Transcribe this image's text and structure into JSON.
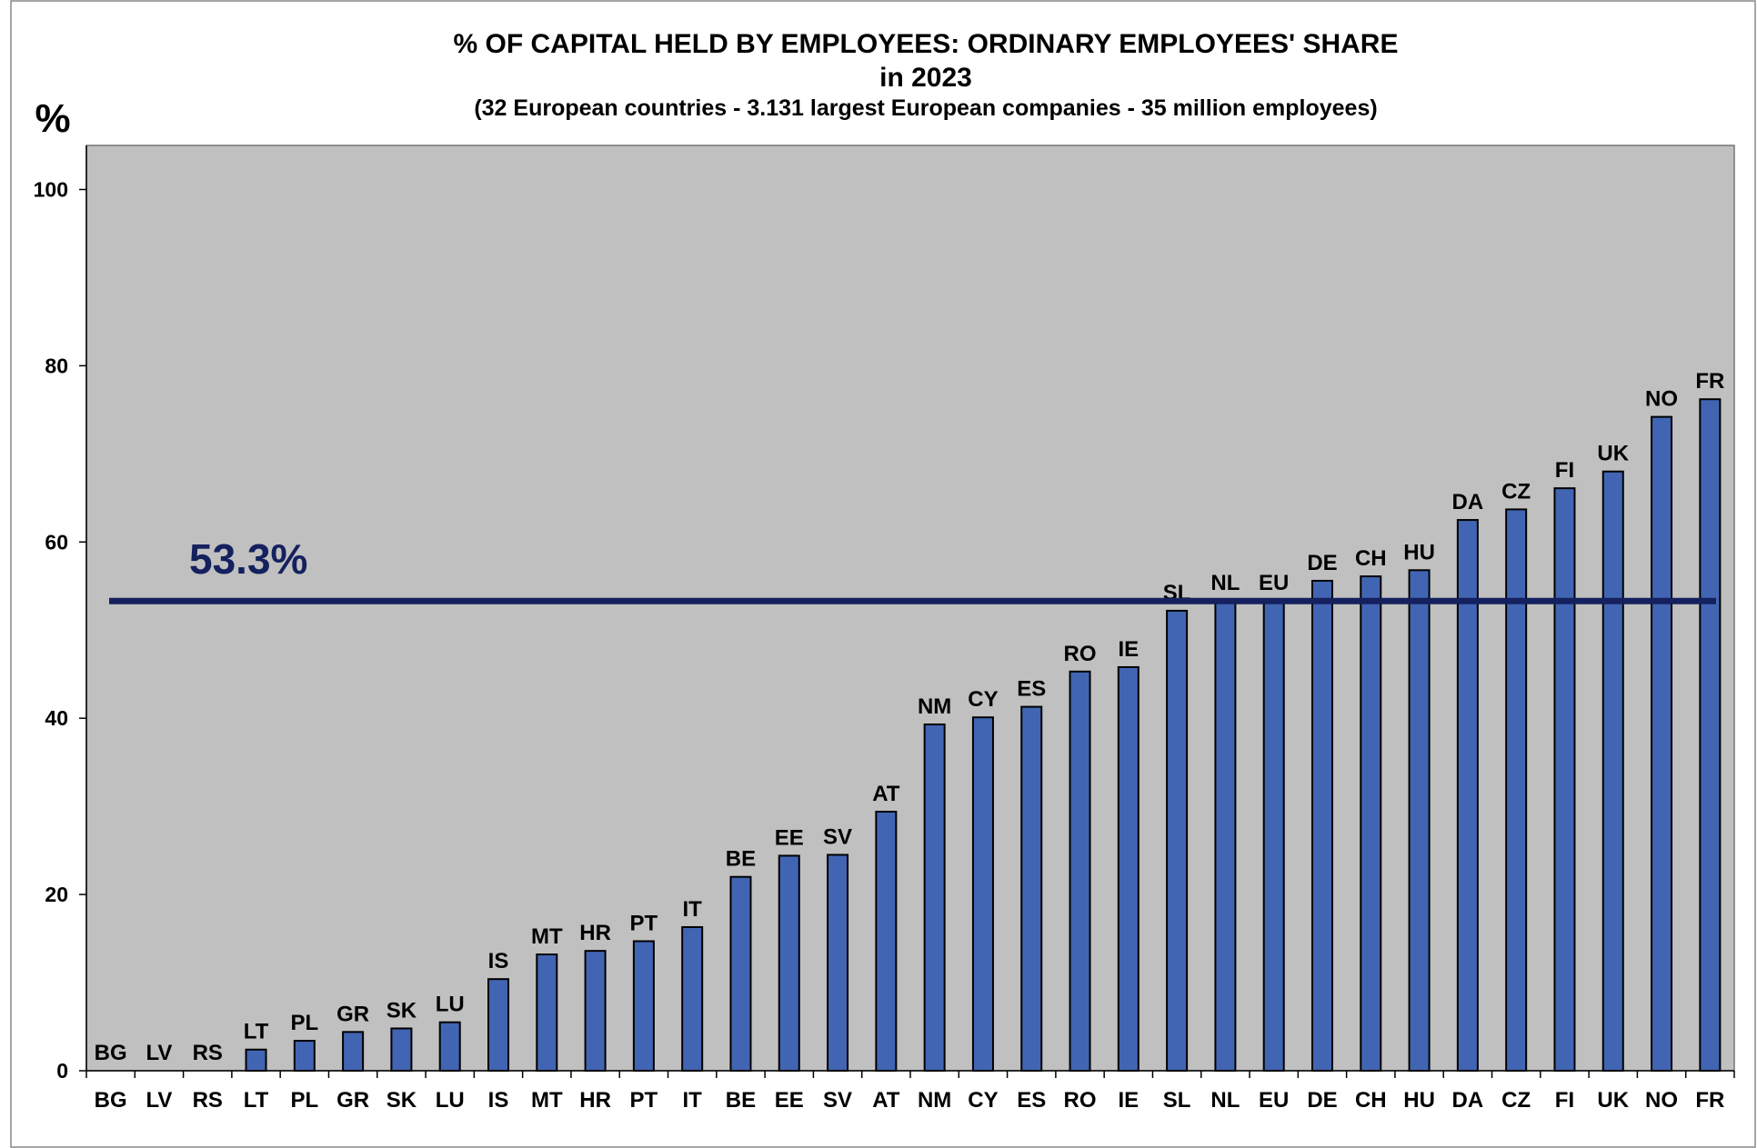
{
  "chart_data": {
    "type": "bar",
    "title": "% OF CAPITAL HELD BY EMPLOYEES:  ORDINARY EMPLOYEES' SHARE",
    "title_line2": "in 2023",
    "subtitle": "(32 European countries - 3.131 largest European companies - 35 million employees)",
    "ylabel": "%",
    "categories": [
      "BG",
      "LV",
      "RS",
      "LT",
      "PL",
      "GR",
      "SK",
      "LU",
      "IS",
      "MT",
      "HR",
      "PT",
      "IT",
      "BE",
      "EE",
      "SV",
      "AT",
      "NM",
      "CY",
      "ES",
      "RO",
      "IE",
      "SL",
      "NL",
      "EU",
      "DE",
      "CH",
      "HU",
      "DA",
      "CZ",
      "FI",
      "UK",
      "NO",
      "FR"
    ],
    "values": [
      0,
      0,
      0,
      2.4,
      3.4,
      4.4,
      4.8,
      5.5,
      10.4,
      13.2,
      13.6,
      14.7,
      16.3,
      22,
      24.4,
      24.5,
      29.4,
      39.3,
      40.1,
      41.3,
      45.3,
      45.8,
      52.2,
      53.3,
      53.3,
      55.6,
      56.1,
      56.8,
      62.5,
      63.7,
      66.1,
      68,
      74.2,
      76.2
    ],
    "color": "#4265b3",
    "reference_line": {
      "value": 53.3,
      "label": "53.3%",
      "color": "#14215e"
    },
    "ylim": [
      0,
      105
    ],
    "yticks": [
      0,
      20,
      40,
      60,
      80,
      100
    ],
    "grid": false,
    "plot_background": "#c0c0c0"
  }
}
